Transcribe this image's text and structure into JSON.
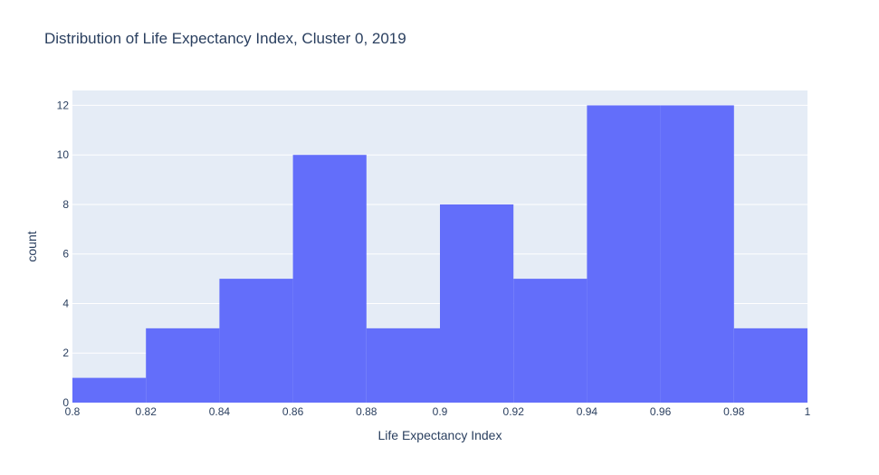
{
  "chart_data": {
    "type": "bar",
    "subtype": "histogram",
    "title": "Distribution of Life Expectancy Index, Cluster 0, 2019",
    "xlabel": "Life Expectancy Index",
    "ylabel": "count",
    "bins": [
      {
        "start": 0.8,
        "end": 0.82,
        "count": 1
      },
      {
        "start": 0.82,
        "end": 0.84,
        "count": 3
      },
      {
        "start": 0.84,
        "end": 0.86,
        "count": 5
      },
      {
        "start": 0.86,
        "end": 0.88,
        "count": 10
      },
      {
        "start": 0.88,
        "end": 0.9,
        "count": 3
      },
      {
        "start": 0.9,
        "end": 0.92,
        "count": 8
      },
      {
        "start": 0.92,
        "end": 0.94,
        "count": 5
      },
      {
        "start": 0.94,
        "end": 0.96,
        "count": 12
      },
      {
        "start": 0.96,
        "end": 0.98,
        "count": 12
      },
      {
        "start": 0.98,
        "end": 1.0,
        "count": 3
      }
    ],
    "xlim": [
      0.8,
      1.0
    ],
    "ylim": [
      0,
      12.6
    ],
    "x_ticks": [
      "0.8",
      "0.82",
      "0.84",
      "0.86",
      "0.88",
      "0.9",
      "0.92",
      "0.94",
      "0.96",
      "0.98",
      "1"
    ],
    "y_ticks": [
      "0",
      "2",
      "4",
      "6",
      "8",
      "10",
      "12"
    ],
    "grid": true,
    "colors": {
      "bar": "#636efa",
      "plot_background": "#e5ecf6",
      "grid": "#ffffff",
      "text": "#2a3f5f"
    }
  }
}
